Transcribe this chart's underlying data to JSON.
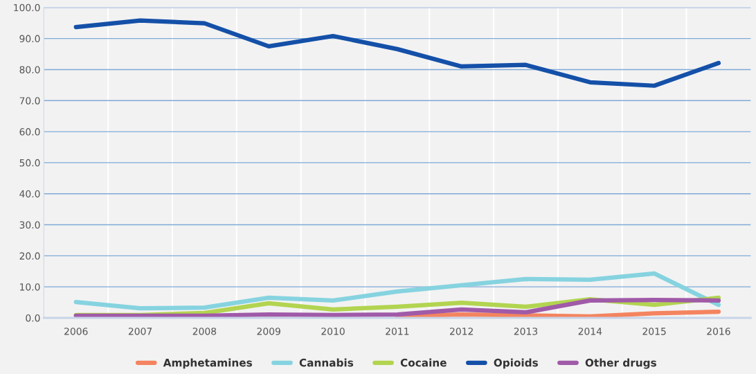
{
  "chart_data": {
    "type": "line",
    "categories": [
      "2006",
      "2007",
      "2008",
      "2009",
      "2010",
      "2011",
      "2012",
      "2013",
      "2014",
      "2015",
      "2016"
    ],
    "series": [
      {
        "name": "Amphetamines",
        "color": "#f4845f",
        "values": [
          null,
          null,
          null,
          null,
          null,
          0.6,
          1.1,
          0.8,
          0.5,
          1.5,
          2.0
        ]
      },
      {
        "name": "Cannabis",
        "color": "#86d3e0",
        "values": [
          5.1,
          3.1,
          3.3,
          6.5,
          5.6,
          8.5,
          10.5,
          12.5,
          12.3,
          14.3,
          4.2
        ]
      },
      {
        "name": "Cocaine",
        "color": "#b2d450",
        "values": [
          0.9,
          0.9,
          1.6,
          4.7,
          2.7,
          3.6,
          4.9,
          3.6,
          6.0,
          4.2,
          6.5
        ]
      },
      {
        "name": "Opioids",
        "color": "#1450a8",
        "values": [
          93.7,
          95.8,
          94.9,
          87.5,
          90.8,
          86.6,
          81.0,
          81.5,
          75.9,
          74.8,
          82.1
        ]
      },
      {
        "name": "Other drugs",
        "color": "#a05aa8",
        "values": [
          0.7,
          0.7,
          0.7,
          1.1,
          0.9,
          1.1,
          2.7,
          1.8,
          5.6,
          5.8,
          5.6
        ]
      }
    ],
    "ylim": [
      0,
      100
    ],
    "yticks": [
      {
        "value": 0,
        "label": "0.0"
      },
      {
        "value": 10,
        "label": "10.0"
      },
      {
        "value": 20,
        "label": "20.0"
      },
      {
        "value": 30,
        "label": "30.0"
      },
      {
        "value": 40,
        "label": "40.0"
      },
      {
        "value": 50,
        "label": "50.0"
      },
      {
        "value": 60,
        "label": "60.0"
      },
      {
        "value": 70,
        "label": "70.0"
      },
      {
        "value": 80,
        "label": "80.0"
      },
      {
        "value": 90,
        "label": "90.0"
      },
      {
        "value": 100,
        "label": "100.0"
      }
    ],
    "grid": "y",
    "legend": "bottom",
    "marker": "none",
    "line_style": "solid"
  }
}
